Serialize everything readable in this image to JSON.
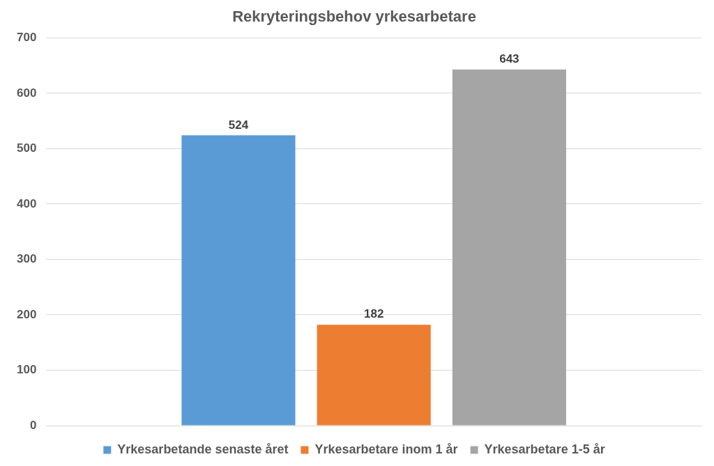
{
  "chart_data": {
    "type": "bar",
    "title": "Rekryteringsbehov yrkesarbetare",
    "categories": [
      null
    ],
    "series": [
      {
        "name": "Yrkesarbetande senaste året",
        "color": "#5b9bd5",
        "values": [
          524
        ]
      },
      {
        "name": "Yrkesarbetare inom 1 år",
        "color": "#ed7d31",
        "values": [
          182
        ]
      },
      {
        "name": "Yrkesarbetare 1-5 år",
        "color": "#a5a5a5",
        "values": [
          643
        ]
      }
    ],
    "ylim": [
      0,
      700
    ],
    "yticks": [
      0,
      100,
      200,
      300,
      400,
      500,
      600,
      700
    ],
    "grid": true,
    "legend": "bottom",
    "data_labels": true,
    "tick_labels": "y"
  }
}
